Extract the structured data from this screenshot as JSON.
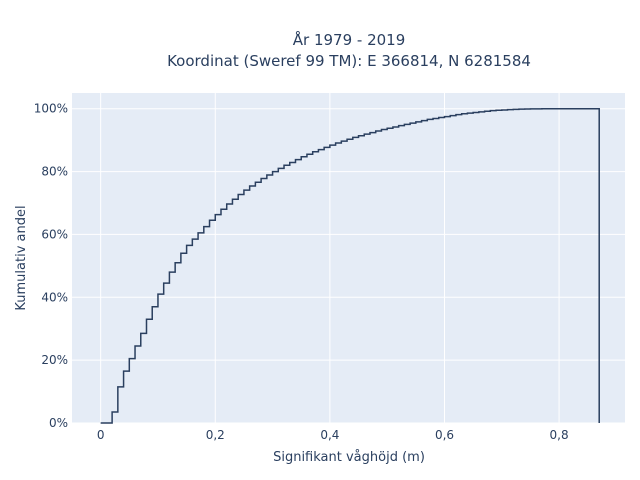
{
  "chart_data": {
    "type": "line",
    "title_line1": "År 1979 - 2019",
    "title_line2": "Koordinat (Sweref 99 TM): E 366814, N 6281584",
    "xlabel": "Signifikant våghöjd (m)",
    "ylabel": "Kumulativ andel",
    "xlim": [
      -0.05,
      0.915
    ],
    "ylim": [
      0,
      1.05
    ],
    "x_ticks": [
      0,
      0.2,
      0.4,
      0.6,
      0.8
    ],
    "x_tick_labels": [
      "0",
      "0,2",
      "0,4",
      "0,6",
      "0,8"
    ],
    "y_ticks": [
      0,
      0.2,
      0.4,
      0.6,
      0.8,
      1.0
    ],
    "y_tick_labels": [
      "0%",
      "20%",
      "40%",
      "60%",
      "80%",
      "100%"
    ],
    "grid": true,
    "line_color": "#2a3f5f",
    "plot_bg": "#e5ecf6",
    "step_width": 0.01,
    "x_max": 0.87,
    "y_values": [
      0.0,
      0.0,
      0.035,
      0.115,
      0.165,
      0.205,
      0.245,
      0.285,
      0.33,
      0.37,
      0.41,
      0.445,
      0.48,
      0.51,
      0.54,
      0.565,
      0.585,
      0.605,
      0.625,
      0.645,
      0.663,
      0.68,
      0.697,
      0.712,
      0.727,
      0.741,
      0.754,
      0.766,
      0.778,
      0.789,
      0.8,
      0.81,
      0.82,
      0.829,
      0.838,
      0.847,
      0.855,
      0.863,
      0.87,
      0.877,
      0.884,
      0.891,
      0.897,
      0.903,
      0.909,
      0.914,
      0.919,
      0.924,
      0.929,
      0.934,
      0.938,
      0.942,
      0.946,
      0.95,
      0.954,
      0.958,
      0.962,
      0.966,
      0.969,
      0.972,
      0.975,
      0.978,
      0.981,
      0.984,
      0.986,
      0.988,
      0.99,
      0.992,
      0.994,
      0.995,
      0.996,
      0.997,
      0.998,
      0.9985,
      0.999,
      0.9993,
      0.9995,
      0.9997,
      0.9998,
      0.9999,
      1.0,
      1.0,
      1.0,
      1.0,
      1.0,
      1.0,
      1.0
    ]
  }
}
